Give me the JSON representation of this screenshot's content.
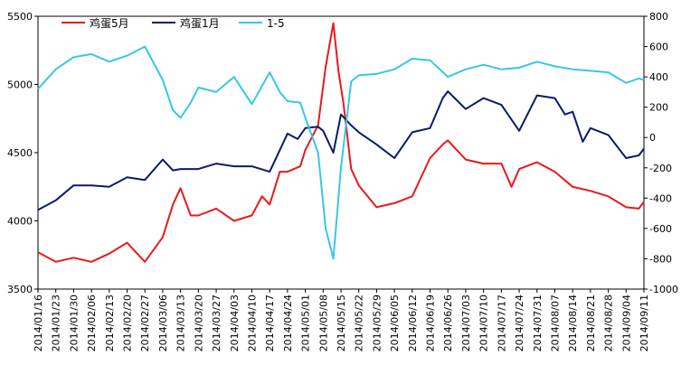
{
  "chart_data": {
    "type": "line",
    "title": "",
    "legend": {
      "placement": "top-left",
      "entries": [
        "鸡蛋5月",
        "鸡蛋1月",
        "1-5"
      ]
    },
    "x_dates": [
      "2014/01/16",
      "2014/01/23",
      "2014/01/30",
      "2014/02/06",
      "2014/02/13",
      "2014/02/20",
      "2014/02/27",
      "2014/03/06",
      "2014/03/13",
      "2014/03/20",
      "2014/03/27",
      "2014/04/03",
      "2014/04/10",
      "2014/04/17",
      "2014/04/24",
      "2014/05/01",
      "2014/05/08",
      "2014/05/15",
      "2014/05/22",
      "2014/05/29",
      "2014/06/05",
      "2014/06/12",
      "2014/06/19",
      "2014/06/26",
      "2014/07/03",
      "2014/07/10",
      "2014/07/17",
      "2014/07/24",
      "2014/07/31",
      "2014/08/07",
      "2014/08/14",
      "2014/08/21",
      "2014/08/28",
      "2014/09/04",
      "2014/09/11"
    ],
    "left_axis": {
      "ylim": [
        3500,
        5500
      ],
      "ticks": [
        3500,
        4000,
        4500,
        5000,
        5500
      ]
    },
    "right_axis": {
      "ylim": [
        -1000,
        800
      ],
      "ticks": [
        -1000,
        -800,
        -600,
        -400,
        -200,
        0,
        200,
        400,
        600,
        800
      ]
    },
    "grid": false,
    "series": [
      {
        "name": "鸡蛋5月",
        "axis": "left",
        "color": "#e8191b",
        "points": [
          [
            "2014/01/16",
            3770
          ],
          [
            "2014/01/23",
            3700
          ],
          [
            "2014/01/30",
            3730
          ],
          [
            "2014/02/06",
            3700
          ],
          [
            "2014/02/13",
            3760
          ],
          [
            "2014/02/20",
            3840
          ],
          [
            "2014/02/27",
            3700
          ],
          [
            "2014/03/06",
            3880
          ],
          [
            "2014/03/10",
            4120
          ],
          [
            "2014/03/13",
            4240
          ],
          [
            "2014/03/17",
            4040
          ],
          [
            "2014/03/20",
            4040
          ],
          [
            "2014/03/27",
            4090
          ],
          [
            "2014/04/03",
            4000
          ],
          [
            "2014/04/10",
            4040
          ],
          [
            "2014/04/14",
            4180
          ],
          [
            "2014/04/17",
            4120
          ],
          [
            "2014/04/21",
            4360
          ],
          [
            "2014/04/24",
            4360
          ],
          [
            "2014/04/29",
            4400
          ],
          [
            "2014/05/01",
            4520
          ],
          [
            "2014/05/06",
            4700
          ],
          [
            "2014/05/09",
            5130
          ],
          [
            "2014/05/12",
            5450
          ],
          [
            "2014/05/14",
            5100
          ],
          [
            "2014/05/16",
            4860
          ],
          [
            "2014/05/19",
            4380
          ],
          [
            "2014/05/22",
            4260
          ],
          [
            "2014/05/29",
            4100
          ],
          [
            "2014/06/05",
            4130
          ],
          [
            "2014/06/12",
            4180
          ],
          [
            "2014/06/19",
            4460
          ],
          [
            "2014/06/24",
            4560
          ],
          [
            "2014/06/26",
            4590
          ],
          [
            "2014/07/03",
            4450
          ],
          [
            "2014/07/10",
            4420
          ],
          [
            "2014/07/17",
            4420
          ],
          [
            "2014/07/21",
            4250
          ],
          [
            "2014/07/24",
            4380
          ],
          [
            "2014/07/31",
            4430
          ],
          [
            "2014/08/07",
            4360
          ],
          [
            "2014/08/14",
            4250
          ],
          [
            "2014/08/21",
            4220
          ],
          [
            "2014/08/28",
            4180
          ],
          [
            "2014/09/04",
            4100
          ],
          [
            "2014/09/09",
            4090
          ],
          [
            "2014/09/11",
            4140
          ]
        ]
      },
      {
        "name": "鸡蛋1月",
        "axis": "left",
        "color": "#0b1a6e",
        "points": [
          [
            "2014/01/16",
            4080
          ],
          [
            "2014/01/23",
            4150
          ],
          [
            "2014/01/30",
            4260
          ],
          [
            "2014/02/06",
            4260
          ],
          [
            "2014/02/13",
            4250
          ],
          [
            "2014/02/20",
            4320
          ],
          [
            "2014/02/27",
            4300
          ],
          [
            "2014/03/06",
            4450
          ],
          [
            "2014/03/10",
            4370
          ],
          [
            "2014/03/13",
            4380
          ],
          [
            "2014/03/20",
            4380
          ],
          [
            "2014/03/27",
            4420
          ],
          [
            "2014/04/03",
            4400
          ],
          [
            "2014/04/10",
            4400
          ],
          [
            "2014/04/17",
            4360
          ],
          [
            "2014/04/24",
            4640
          ],
          [
            "2014/04/28",
            4600
          ],
          [
            "2014/05/01",
            4680
          ],
          [
            "2014/05/06",
            4690
          ],
          [
            "2014/05/08",
            4660
          ],
          [
            "2014/05/12",
            4500
          ],
          [
            "2014/05/15",
            4780
          ],
          [
            "2014/05/19",
            4700
          ],
          [
            "2014/05/22",
            4650
          ],
          [
            "2014/05/29",
            4560
          ],
          [
            "2014/06/05",
            4460
          ],
          [
            "2014/06/12",
            4650
          ],
          [
            "2014/06/19",
            4680
          ],
          [
            "2014/06/24",
            4900
          ],
          [
            "2014/06/26",
            4950
          ],
          [
            "2014/07/03",
            4820
          ],
          [
            "2014/07/10",
            4900
          ],
          [
            "2014/07/17",
            4850
          ],
          [
            "2014/07/24",
            4660
          ],
          [
            "2014/07/31",
            4920
          ],
          [
            "2014/08/07",
            4900
          ],
          [
            "2014/08/11",
            4780
          ],
          [
            "2014/08/14",
            4800
          ],
          [
            "2014/08/18",
            4580
          ],
          [
            "2014/08/21",
            4680
          ],
          [
            "2014/08/28",
            4630
          ],
          [
            "2014/09/04",
            4460
          ],
          [
            "2014/09/09",
            4480
          ],
          [
            "2014/09/11",
            4530
          ]
        ]
      },
      {
        "name": "1-5",
        "axis": "right",
        "color": "#38c6e8",
        "points": [
          [
            "2014/01/16",
            320
          ],
          [
            "2014/01/23",
            450
          ],
          [
            "2014/01/30",
            530
          ],
          [
            "2014/02/06",
            550
          ],
          [
            "2014/02/13",
            500
          ],
          [
            "2014/02/20",
            540
          ],
          [
            "2014/02/27",
            600
          ],
          [
            "2014/03/06",
            380
          ],
          [
            "2014/03/10",
            180
          ],
          [
            "2014/03/13",
            130
          ],
          [
            "2014/03/17",
            230
          ],
          [
            "2014/03/20",
            330
          ],
          [
            "2014/03/27",
            300
          ],
          [
            "2014/04/03",
            400
          ],
          [
            "2014/04/10",
            220
          ],
          [
            "2014/04/17",
            430
          ],
          [
            "2014/04/21",
            300
          ],
          [
            "2014/04/24",
            240
          ],
          [
            "2014/04/29",
            230
          ],
          [
            "2014/05/01",
            130
          ],
          [
            "2014/05/06",
            -100
          ],
          [
            "2014/05/09",
            -600
          ],
          [
            "2014/05/12",
            -800
          ],
          [
            "2014/05/15",
            -200
          ],
          [
            "2014/05/19",
            370
          ],
          [
            "2014/05/22",
            410
          ],
          [
            "2014/05/29",
            420
          ],
          [
            "2014/06/05",
            450
          ],
          [
            "2014/06/12",
            520
          ],
          [
            "2014/06/19",
            510
          ],
          [
            "2014/06/26",
            400
          ],
          [
            "2014/07/03",
            450
          ],
          [
            "2014/07/10",
            480
          ],
          [
            "2014/07/17",
            450
          ],
          [
            "2014/07/24",
            460
          ],
          [
            "2014/07/31",
            500
          ],
          [
            "2014/08/07",
            470
          ],
          [
            "2014/08/14",
            450
          ],
          [
            "2014/08/21",
            440
          ],
          [
            "2014/08/28",
            430
          ],
          [
            "2014/09/04",
            360
          ],
          [
            "2014/09/09",
            390
          ],
          [
            "2014/09/11",
            380
          ]
        ]
      }
    ]
  }
}
